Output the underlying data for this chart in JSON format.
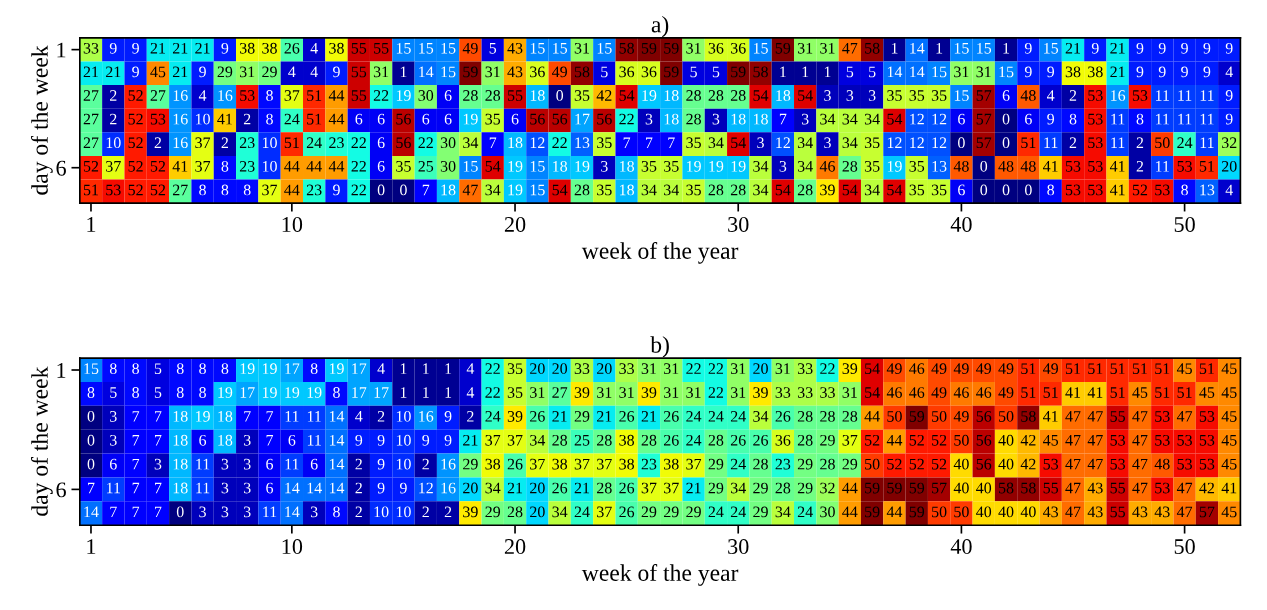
{
  "chart_data": [
    {
      "type": "heatmap",
      "title": "a)",
      "xlabel": "week of the year",
      "ylabel": "day of the week",
      "data_labels": true,
      "categories": [
        "1",
        null,
        null,
        null,
        null,
        null,
        null,
        null,
        null,
        "10",
        null,
        null,
        null,
        null,
        null,
        null,
        null,
        null,
        null,
        "20",
        null,
        null,
        null,
        null,
        null,
        null,
        null,
        null,
        null,
        "30",
        null,
        null,
        null,
        null,
        null,
        null,
        null,
        null,
        null,
        "40",
        null,
        null,
        null,
        null,
        null,
        null,
        null,
        null,
        null,
        "50",
        null,
        null
      ],
      "y_categories": [
        "1",
        null,
        null,
        null,
        null,
        "6",
        null
      ],
      "cells": [
        [
          33,
          9,
          9,
          21,
          21,
          21,
          9,
          38,
          38,
          26,
          4,
          38,
          55,
          55,
          15,
          15,
          15,
          49,
          5,
          43,
          15,
          15,
          31,
          15,
          58,
          59,
          59,
          31,
          36,
          36,
          15,
          59,
          31,
          31,
          47,
          58,
          1,
          14,
          1,
          15,
          15,
          1,
          9,
          15,
          21,
          9,
          21,
          9,
          9,
          9,
          9,
          9
        ],
        [
          21,
          21,
          9,
          45,
          21,
          9,
          29,
          31,
          29,
          4,
          4,
          9,
          55,
          31,
          1,
          14,
          15,
          59,
          31,
          43,
          36,
          49,
          58,
          5,
          36,
          36,
          59,
          5,
          5,
          59,
          58,
          1,
          1,
          1,
          5,
          5,
          14,
          14,
          15,
          31,
          31,
          15,
          9,
          9,
          38,
          38,
          21,
          9,
          9,
          9,
          9,
          4
        ],
        [
          27,
          2,
          52,
          27,
          16,
          4,
          16,
          53,
          8,
          37,
          51,
          44,
          55,
          22,
          19,
          30,
          6,
          28,
          28,
          55,
          18,
          0,
          35,
          42,
          54,
          19,
          18,
          28,
          28,
          28,
          54,
          18,
          54,
          3,
          3,
          3,
          35,
          35,
          35,
          15,
          57,
          6,
          48,
          4,
          2,
          53,
          16,
          53,
          11,
          11,
          11,
          9
        ],
        [
          27,
          2,
          52,
          53,
          16,
          10,
          41,
          2,
          8,
          24,
          51,
          44,
          6,
          6,
          56,
          6,
          6,
          19,
          35,
          6,
          56,
          56,
          17,
          56,
          22,
          3,
          18,
          28,
          3,
          18,
          18,
          7,
          3,
          34,
          34,
          34,
          54,
          12,
          12,
          6,
          57,
          0,
          6,
          9,
          8,
          53,
          11,
          8,
          11,
          11,
          11,
          9
        ],
        [
          27,
          10,
          52,
          2,
          16,
          37,
          2,
          23,
          10,
          51,
          24,
          23,
          22,
          6,
          56,
          22,
          30,
          34,
          7,
          18,
          12,
          22,
          13,
          35,
          7,
          7,
          7,
          35,
          34,
          54,
          3,
          12,
          34,
          3,
          34,
          35,
          12,
          12,
          12,
          0,
          57,
          0,
          51,
          11,
          2,
          53,
          11,
          2,
          50,
          24,
          11,
          32
        ],
        [
          52,
          37,
          52,
          52,
          41,
          37,
          8,
          23,
          10,
          44,
          44,
          44,
          22,
          6,
          35,
          25,
          30,
          15,
          54,
          19,
          15,
          18,
          19,
          3,
          18,
          35,
          35,
          19,
          19,
          19,
          34,
          3,
          34,
          46,
          28,
          35,
          19,
          35,
          13,
          48,
          0,
          48,
          48,
          41,
          53,
          53,
          41,
          2,
          11,
          53,
          51,
          20
        ],
        [
          51,
          53,
          52,
          52,
          27,
          8,
          8,
          8,
          37,
          44,
          23,
          9,
          22,
          0,
          0,
          7,
          18,
          47,
          34,
          19,
          15,
          54,
          28,
          35,
          18,
          34,
          34,
          35,
          28,
          28,
          34,
          54,
          28,
          39,
          54,
          34,
          54,
          35,
          35,
          6,
          0,
          0,
          0,
          8,
          53,
          53,
          41,
          52,
          53,
          8,
          13,
          4
        ]
      ]
    },
    {
      "type": "heatmap",
      "title": "b)",
      "xlabel": "week of the year",
      "ylabel": "day of the week",
      "data_labels": true,
      "categories": [
        "1",
        null,
        null,
        null,
        null,
        null,
        null,
        null,
        null,
        "10",
        null,
        null,
        null,
        null,
        null,
        null,
        null,
        null,
        null,
        "20",
        null,
        null,
        null,
        null,
        null,
        null,
        null,
        null,
        null,
        "30",
        null,
        null,
        null,
        null,
        null,
        null,
        null,
        null,
        null,
        "40",
        null,
        null,
        null,
        null,
        null,
        null,
        null,
        null,
        null,
        "50",
        null,
        null
      ],
      "y_categories": [
        "1",
        null,
        null,
        null,
        null,
        "6",
        null
      ],
      "cells": [
        [
          15,
          8,
          8,
          5,
          8,
          8,
          8,
          19,
          19,
          17,
          8,
          19,
          17,
          4,
          1,
          1,
          1,
          4,
          22,
          35,
          20,
          20,
          33,
          20,
          33,
          31,
          31,
          22,
          22,
          31,
          20,
          31,
          33,
          22,
          39,
          54,
          49,
          46,
          49,
          49,
          49,
          49,
          51,
          49,
          51,
          51,
          51,
          51,
          51,
          45,
          51,
          45
        ],
        [
          8,
          5,
          8,
          5,
          8,
          8,
          19,
          17,
          19,
          19,
          19,
          8,
          17,
          17,
          1,
          1,
          1,
          4,
          22,
          35,
          31,
          27,
          39,
          31,
          31,
          39,
          31,
          31,
          22,
          31,
          39,
          33,
          33,
          33,
          31,
          54,
          46,
          46,
          49,
          46,
          46,
          49,
          51,
          51,
          41,
          41,
          51,
          45,
          51,
          51,
          45,
          45
        ],
        [
          0,
          3,
          7,
          7,
          18,
          19,
          18,
          7,
          7,
          11,
          11,
          14,
          4,
          2,
          10,
          16,
          9,
          2,
          24,
          39,
          26,
          21,
          29,
          21,
          26,
          21,
          26,
          24,
          24,
          24,
          34,
          26,
          28,
          28,
          28,
          44,
          50,
          59,
          50,
          49,
          56,
          50,
          58,
          41,
          47,
          47,
          55,
          47,
          53,
          47,
          53,
          45
        ],
        [
          0,
          3,
          7,
          7,
          18,
          6,
          18,
          3,
          7,
          6,
          11,
          14,
          9,
          9,
          10,
          9,
          9,
          21,
          37,
          37,
          34,
          28,
          25,
          28,
          38,
          28,
          26,
          24,
          28,
          26,
          26,
          36,
          28,
          29,
          37,
          52,
          44,
          52,
          52,
          50,
          56,
          40,
          42,
          45,
          47,
          47,
          53,
          47,
          53,
          53,
          53,
          45
        ],
        [
          0,
          6,
          7,
          3,
          18,
          11,
          3,
          3,
          6,
          11,
          6,
          14,
          2,
          9,
          10,
          2,
          16,
          29,
          38,
          26,
          37,
          38,
          37,
          37,
          38,
          23,
          38,
          37,
          29,
          24,
          28,
          23,
          29,
          28,
          29,
          50,
          52,
          52,
          52,
          40,
          56,
          40,
          42,
          53,
          47,
          47,
          53,
          47,
          48,
          53,
          53,
          45
        ],
        [
          7,
          11,
          7,
          7,
          18,
          11,
          3,
          3,
          6,
          14,
          14,
          14,
          2,
          9,
          9,
          12,
          16,
          20,
          34,
          21,
          20,
          26,
          21,
          28,
          26,
          37,
          37,
          21,
          29,
          34,
          29,
          28,
          29,
          32,
          44,
          59,
          59,
          59,
          57,
          40,
          40,
          58,
          58,
          55,
          47,
          43,
          55,
          47,
          53,
          47,
          42,
          41
        ],
        [
          14,
          7,
          7,
          7,
          0,
          3,
          3,
          3,
          11,
          14,
          3,
          8,
          2,
          10,
          10,
          2,
          2,
          39,
          29,
          28,
          20,
          34,
          24,
          37,
          26,
          29,
          29,
          29,
          24,
          24,
          29,
          34,
          24,
          30,
          44,
          59,
          44,
          59,
          50,
          50,
          40,
          40,
          40,
          43,
          47,
          43,
          55,
          43,
          43,
          47,
          57,
          45
        ]
      ]
    }
  ]
}
